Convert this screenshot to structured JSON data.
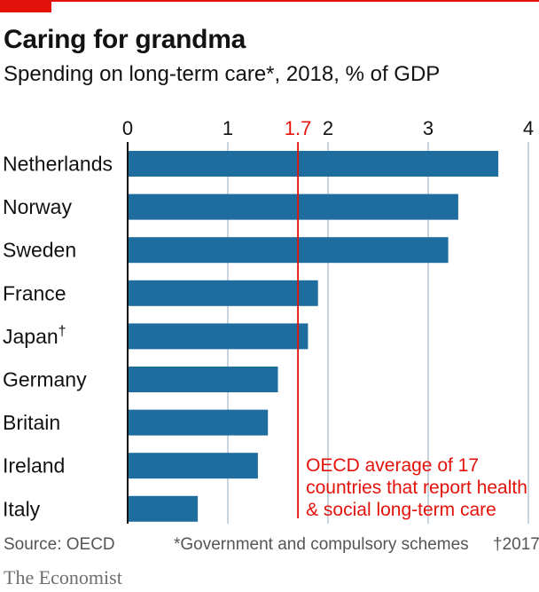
{
  "header": {
    "title": "Caring for grandma",
    "subtitle": "Spending on long-term care*, 2018, % of GDP"
  },
  "chart_data": {
    "type": "bar",
    "orientation": "horizontal",
    "categories": [
      "Netherlands",
      "Norway",
      "Sweden",
      "France",
      "Japan†",
      "Germany",
      "Britain",
      "Ireland",
      "Italy"
    ],
    "values": [
      3.7,
      3.3,
      3.2,
      1.9,
      1.8,
      1.5,
      1.4,
      1.3,
      0.7
    ],
    "xlim": [
      0,
      4
    ],
    "xticks": [
      "0",
      "1",
      "2",
      "3",
      "4"
    ],
    "grid": true,
    "bar_color": "#1f6d9e",
    "reference_line": {
      "value": 1.7,
      "label": "1.7",
      "color": "#e3120b",
      "annotation": [
        "OECD average of 17",
        "countries that report health",
        "& social long-term care"
      ]
    }
  },
  "footer": {
    "source": "Source: OECD",
    "note": "*Government and compulsory schemes",
    "dagger_note": "†2017",
    "brand": "The Economist"
  }
}
